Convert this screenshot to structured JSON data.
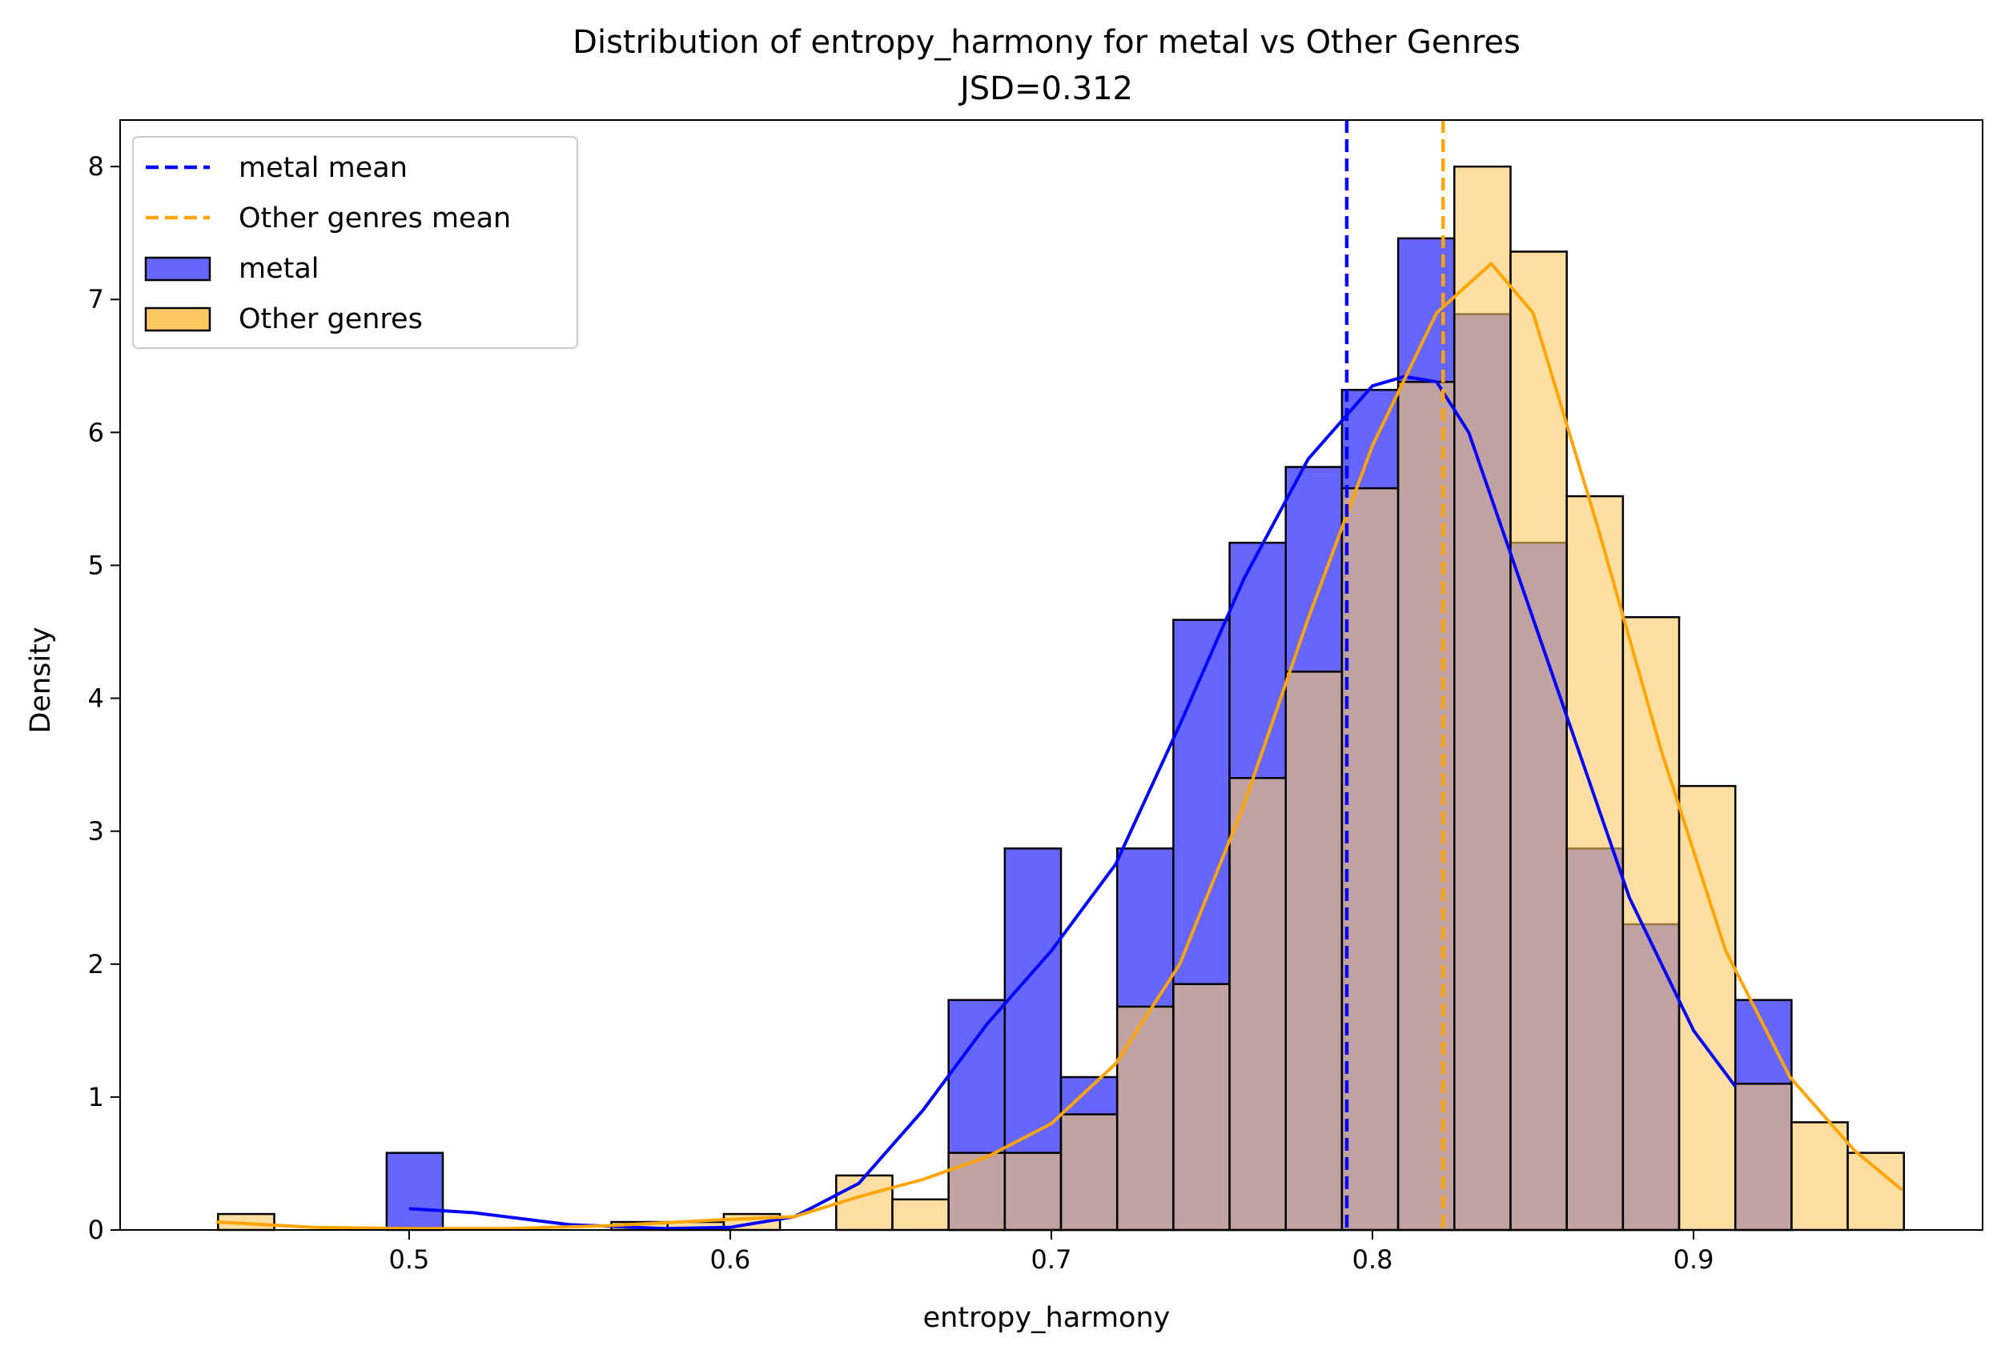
{
  "chart_data": {
    "type": "histogram",
    "title": "Distribution of entropy_harmony for metal vs Other Genres",
    "subtitle": "JSD=0.312",
    "xlabel": "entropy_harmony",
    "ylabel": "Density",
    "xlim": [
      0.41,
      0.99
    ],
    "ylim": [
      0,
      8.35
    ],
    "xticks": [
      0.5,
      0.6,
      0.7,
      0.8,
      0.9
    ],
    "xtick_labels": [
      "0.5",
      "0.6",
      "0.7",
      "0.8",
      "0.9"
    ],
    "yticks": [
      0,
      1,
      2,
      3,
      4,
      5,
      6,
      7,
      8
    ],
    "ytick_labels": [
      "0",
      "1",
      "2",
      "3",
      "4",
      "5",
      "6",
      "7",
      "8"
    ],
    "grid": false,
    "legend_position": "top-left",
    "bin_edges": [
      0.4405,
      0.458,
      0.4755,
      0.493,
      0.5105,
      0.528,
      0.5455,
      0.563,
      0.5805,
      0.598,
      0.6155,
      0.633,
      0.6505,
      0.668,
      0.6855,
      0.703,
      0.7205,
      0.738,
      0.7555,
      0.773,
      0.7905,
      0.808,
      0.8255,
      0.843,
      0.8605,
      0.878,
      0.8955,
      0.913,
      0.9305,
      0.948,
      0.9655
    ],
    "series": [
      {
        "name": "metal",
        "color": "#6666ff",
        "counts": [
          0,
          0,
          0,
          0.58,
          0,
          0,
          0,
          0,
          0,
          0,
          0,
          0,
          0,
          1.73,
          2.87,
          1.15,
          2.87,
          4.59,
          5.17,
          5.74,
          6.32,
          7.46,
          6.89,
          5.17,
          2.87,
          2.3,
          0,
          1.73,
          0,
          0
        ],
        "kde": [
          [
            0.5,
            0.16
          ],
          [
            0.52,
            0.13
          ],
          [
            0.55,
            0.04
          ],
          [
            0.58,
            0.01
          ],
          [
            0.6,
            0.02
          ],
          [
            0.62,
            0.1
          ],
          [
            0.64,
            0.35
          ],
          [
            0.66,
            0.9
          ],
          [
            0.68,
            1.55
          ],
          [
            0.7,
            2.1
          ],
          [
            0.72,
            2.75
          ],
          [
            0.74,
            3.8
          ],
          [
            0.76,
            4.9
          ],
          [
            0.78,
            5.8
          ],
          [
            0.8,
            6.35
          ],
          [
            0.81,
            6.42
          ],
          [
            0.82,
            6.38
          ],
          [
            0.83,
            6.0
          ],
          [
            0.84,
            5.3
          ],
          [
            0.86,
            3.9
          ],
          [
            0.88,
            2.5
          ],
          [
            0.9,
            1.5
          ],
          [
            0.913,
            1.08
          ]
        ]
      },
      {
        "name": "Other genres",
        "color": "#ffc864",
        "counts": [
          0.12,
          0,
          0,
          0,
          0,
          0,
          0,
          0.06,
          0.06,
          0.12,
          0,
          0.41,
          0.23,
          0.58,
          0.58,
          0.87,
          1.68,
          1.85,
          3.4,
          4.2,
          5.58,
          6.38,
          8.0,
          7.36,
          5.52,
          4.61,
          3.34,
          1.1,
          0.81,
          0.58
        ],
        "kde": [
          [
            0.44,
            0.06
          ],
          [
            0.47,
            0.02
          ],
          [
            0.5,
            0.01
          ],
          [
            0.53,
            0.01
          ],
          [
            0.56,
            0.03
          ],
          [
            0.6,
            0.08
          ],
          [
            0.62,
            0.1
          ],
          [
            0.64,
            0.25
          ],
          [
            0.66,
            0.38
          ],
          [
            0.68,
            0.55
          ],
          [
            0.7,
            0.8
          ],
          [
            0.72,
            1.25
          ],
          [
            0.74,
            2.0
          ],
          [
            0.76,
            3.2
          ],
          [
            0.78,
            4.6
          ],
          [
            0.8,
            5.9
          ],
          [
            0.82,
            6.9
          ],
          [
            0.837,
            7.27
          ],
          [
            0.85,
            6.9
          ],
          [
            0.87,
            5.3
          ],
          [
            0.89,
            3.6
          ],
          [
            0.91,
            2.1
          ],
          [
            0.93,
            1.15
          ],
          [
            0.95,
            0.6
          ],
          [
            0.965,
            0.3
          ]
        ]
      }
    ],
    "reference_lines": [
      {
        "name": "metal mean",
        "x": 0.792,
        "color": "#0000ff",
        "style": "dashed"
      },
      {
        "name": "Other genres mean",
        "x": 0.822,
        "color": "#ffa500",
        "style": "dashed"
      }
    ],
    "legend": [
      {
        "label": "metal mean",
        "kind": "dashed-line",
        "color": "#0000ff"
      },
      {
        "label": "Other genres mean",
        "kind": "dashed-line",
        "color": "#ffa500"
      },
      {
        "label": "metal",
        "kind": "patch",
        "color": "#6666ff"
      },
      {
        "label": "Other genres",
        "kind": "patch",
        "color": "#ffc864"
      }
    ]
  }
}
